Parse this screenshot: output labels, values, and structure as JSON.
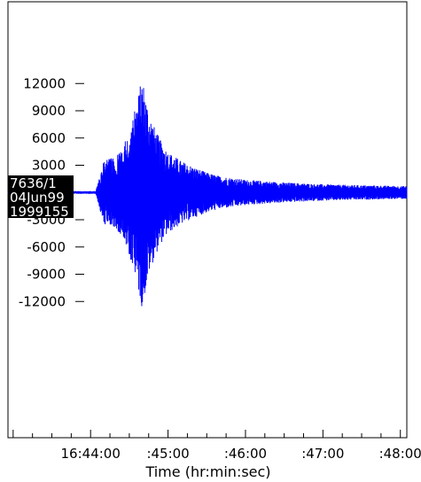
{
  "chart_data": {
    "type": "line",
    "title": "",
    "xlabel": "Time (hr:min:sec)",
    "ylabel": "",
    "x_tick_labels": [
      "16:44:00",
      ":45:00",
      ":46:00",
      ":47:00",
      ":48:00"
    ],
    "x_tick_values_sec": [
      0,
      60,
      120,
      180,
      240
    ],
    "xlim_sec": [
      -64,
      245
    ],
    "y_tick_values": [
      12000,
      9000,
      6000,
      3000,
      0,
      -3000,
      -6000,
      -9000,
      -12000
    ],
    "ylim": [
      -27000,
      21000
    ],
    "grid": false,
    "legend": "none",
    "line_color": "#0000ff",
    "station_label": [
      "7636/1",
      "04Jun99",
      "1999155"
    ],
    "series": [
      {
        "envelope": {
          "t_sec": [
            -64,
            0,
            4,
            6,
            10,
            20,
            25,
            30,
            35,
            40,
            45,
            50,
            55,
            60,
            70,
            80,
            90,
            100,
            120,
            150,
            180,
            210,
            245
          ],
          "amplitude": [
            150,
            150,
            150,
            1200,
            3500,
            4000,
            5000,
            7000,
            9500,
            12800,
            9000,
            7000,
            5500,
            4500,
            3500,
            2800,
            2200,
            1800,
            1400,
            1100,
            900,
            800,
            700
          ]
        }
      }
    ]
  }
}
